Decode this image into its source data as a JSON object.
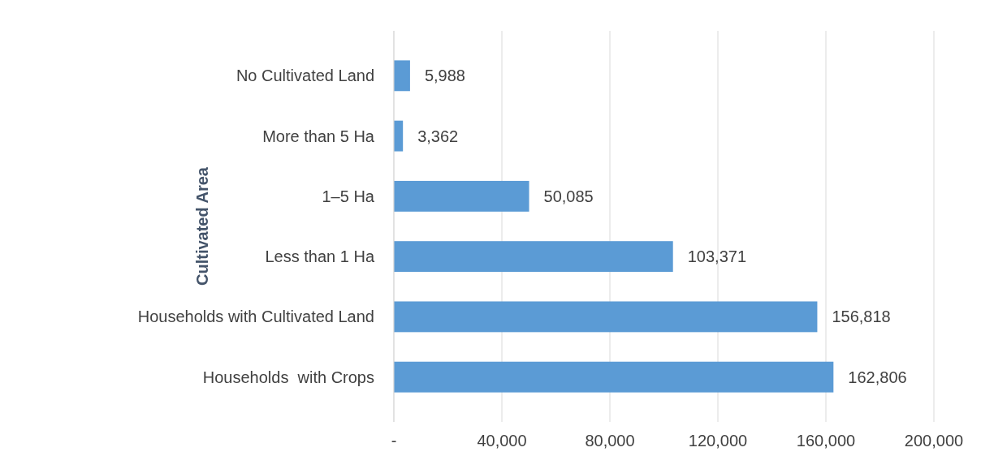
{
  "chart_data": {
    "type": "bar",
    "orientation": "horizontal",
    "ylabel": "Cultivated Area",
    "categories": [
      "No Cultivated Land",
      "More than 5 Ha",
      "1–5 Ha",
      "Less than 1 Ha",
      "Households with Cultivated Land",
      "Households  with Crops"
    ],
    "values": [
      5988,
      3362,
      50085,
      103371,
      156818,
      162806
    ],
    "value_labels": [
      "5,988",
      "3,362",
      "50,085",
      "103,371",
      "156,818",
      "162,806"
    ],
    "color": "#5b9bd5",
    "grid": "x",
    "xlim": [
      0,
      200000
    ],
    "xticks": [
      {
        "value": 0,
        "label": "-"
      },
      {
        "value": 40000,
        "label": "40,000"
      },
      {
        "value": 80000,
        "label": "80,000"
      },
      {
        "value": 120000,
        "label": "120,000"
      },
      {
        "value": 160000,
        "label": "160,000"
      },
      {
        "value": 200000,
        "label": "200,000"
      }
    ]
  }
}
